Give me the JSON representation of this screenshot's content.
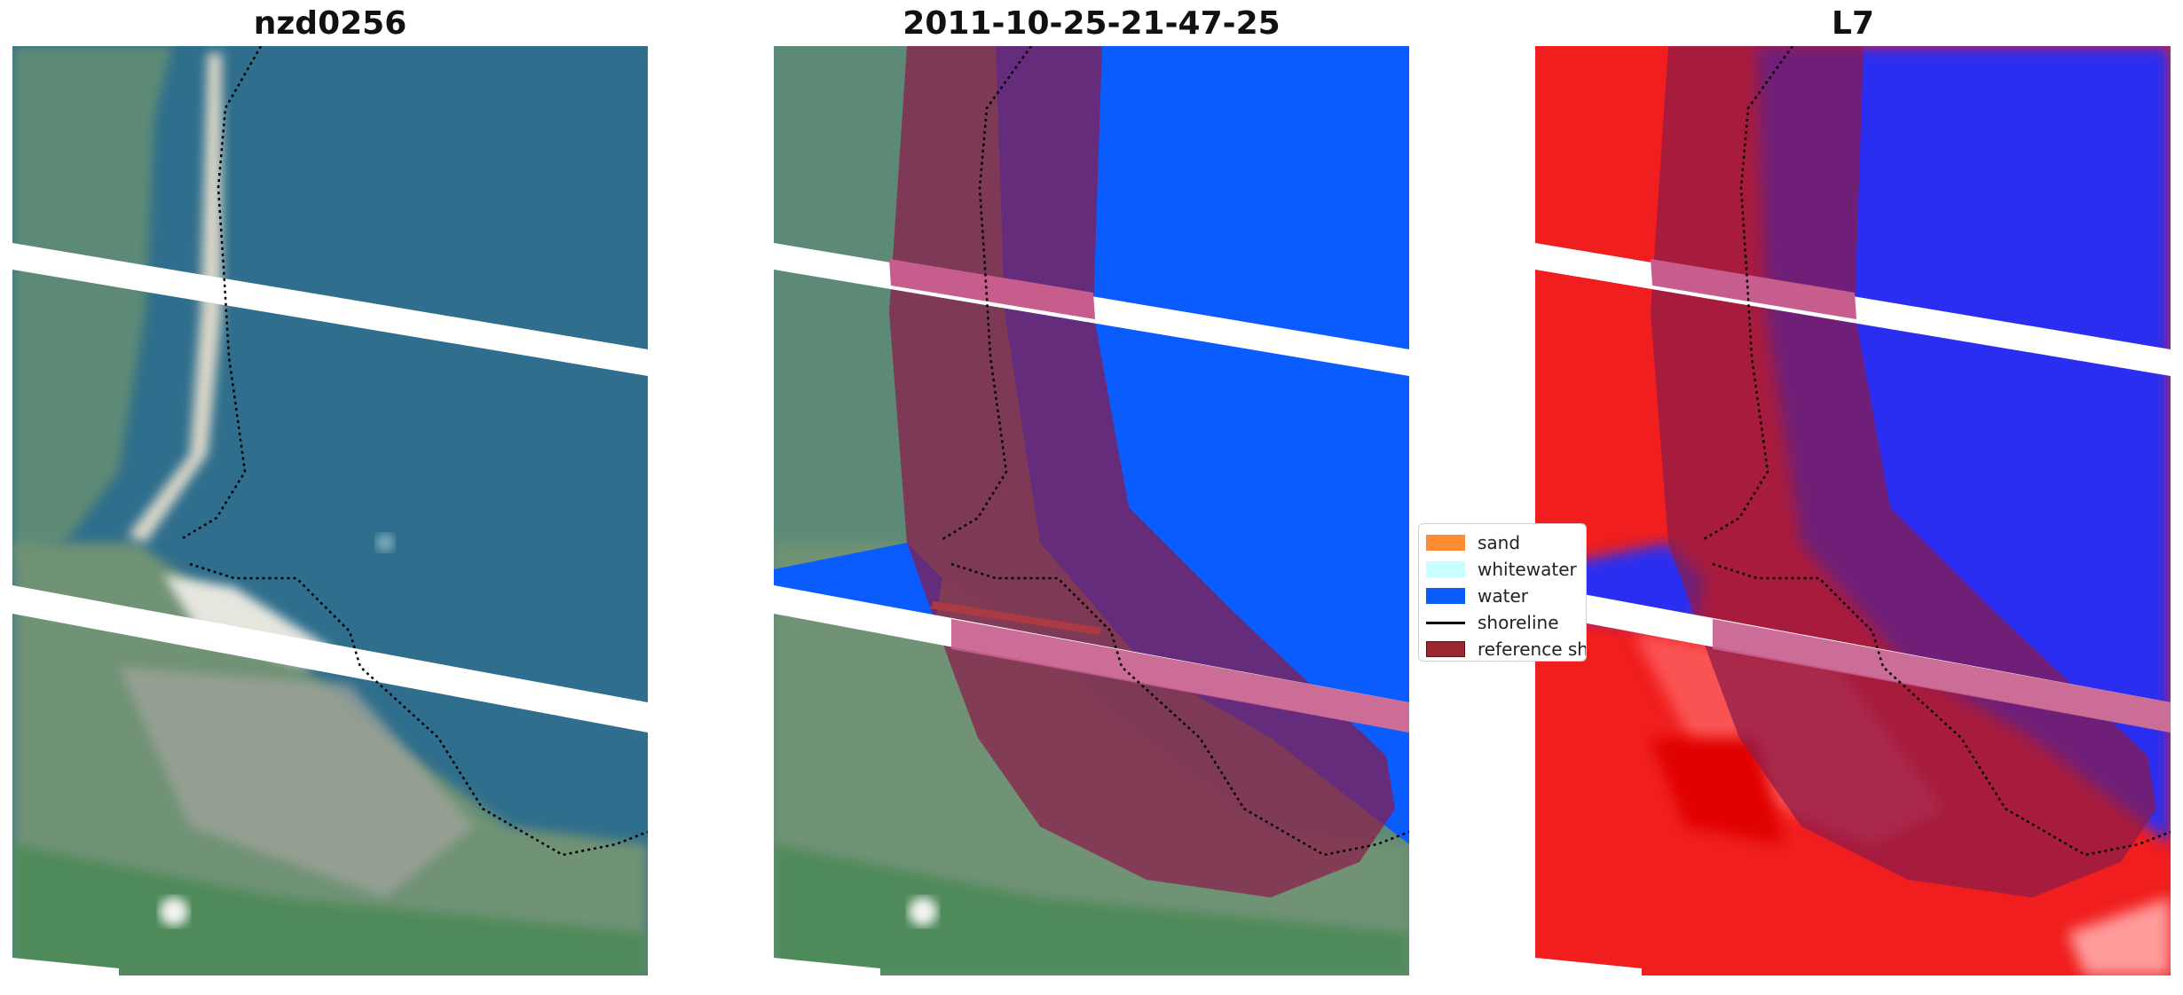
{
  "panels": [
    {
      "title": "nzd0256"
    },
    {
      "title": "2011-10-25-21-47-25"
    },
    {
      "title": "L7"
    }
  ],
  "legend": {
    "items": [
      {
        "label": "sand",
        "color": "#ff8c32"
      },
      {
        "label": "whitewater",
        "color": "#c8ffff"
      },
      {
        "label": "water",
        "color": "#0a5cff"
      },
      {
        "label": "shoreline",
        "color": "#000000"
      },
      {
        "label": "reference shoreline buffer",
        "color": "#9b2730"
      }
    ]
  },
  "colors": {
    "sea_rgb": "#2f6e8c",
    "land_rgb": "#5d8a76",
    "classified_water": "#0a5cff",
    "mndwi_water": "#2a2ef0",
    "mndwi_land": "#f01e1e",
    "buffer_overlay": "#8b1b4a",
    "scan_gap": "#ffffff"
  }
}
